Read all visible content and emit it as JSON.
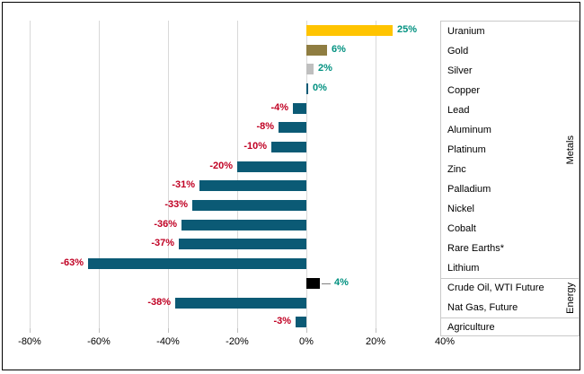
{
  "chart_data": {
    "type": "bar",
    "orientation": "horizontal",
    "title": "",
    "xlabel": "",
    "ylabel": "",
    "unit": "%",
    "xlim": [
      -80,
      45
    ],
    "grid": true,
    "legend_position": "right",
    "x_axis": {
      "ticks": [
        {
          "value": -80,
          "label": "-80%"
        },
        {
          "value": -60,
          "label": "-60%"
        },
        {
          "value": -40,
          "label": "-40%"
        },
        {
          "value": -20,
          "label": "-20%"
        },
        {
          "value": 0,
          "label": "0%"
        },
        {
          "value": 20,
          "label": "20%"
        },
        {
          "value": 40,
          "label": "40%"
        }
      ]
    },
    "categories": [
      "Uranium",
      "Gold",
      "Silver",
      "Copper",
      "Lead",
      "Aluminum",
      "Platinum",
      "Zinc",
      "Palladium",
      "Nickel",
      "Cobalt",
      "Rare Earths*",
      "Lithium",
      "Crude Oil, WTI Future",
      "Nat Gas, Future",
      "Agriculture"
    ],
    "values": [
      25,
      6,
      2,
      0,
      -4,
      -8,
      -10,
      -20,
      -31,
      -33,
      -36,
      -37,
      -63,
      4,
      -38,
      -3
    ],
    "rows": [
      {
        "category": "Uranium",
        "value": 25,
        "label": "25%",
        "color": "#FFC400"
      },
      {
        "category": "Gold",
        "value": 6,
        "label": "6%",
        "color": "#8F7D41"
      },
      {
        "category": "Silver",
        "value": 2,
        "label": "2%",
        "color": "#BFBFBF"
      },
      {
        "category": "Copper",
        "value": 0,
        "label": "0%",
        "color": "#0B5A75"
      },
      {
        "category": "Lead",
        "value": -4,
        "label": "-4%",
        "color": "#0B5A75"
      },
      {
        "category": "Aluminum",
        "value": -8,
        "label": "-8%",
        "color": "#0B5A75"
      },
      {
        "category": "Platinum",
        "value": -10,
        "label": "-10%",
        "color": "#0B5A75"
      },
      {
        "category": "Zinc",
        "value": -20,
        "label": "-20%",
        "color": "#0B5A75"
      },
      {
        "category": "Palladium",
        "value": -31,
        "label": "-31%",
        "color": "#0B5A75"
      },
      {
        "category": "Nickel",
        "value": -33,
        "label": "-33%",
        "color": "#0B5A75"
      },
      {
        "category": "Cobalt",
        "value": -36,
        "label": "-36%",
        "color": "#0B5A75"
      },
      {
        "category": "Rare Earths*",
        "value": -37,
        "label": "-37%",
        "color": "#0B5A75"
      },
      {
        "category": "Lithium",
        "value": -63,
        "label": "-63%",
        "color": "#0B5A75"
      },
      {
        "category": "Crude Oil, WTI Future",
        "value": 4,
        "label": "4%",
        "color": "#000000",
        "leader": true
      },
      {
        "category": "Nat Gas, Future",
        "value": -38,
        "label": "-38%",
        "color": "#0B5A75"
      },
      {
        "category": "Agriculture",
        "value": -3,
        "label": "-3%",
        "color": "#0B5A75"
      }
    ],
    "sections": [
      {
        "label": "Metals",
        "span": 13
      },
      {
        "label": "Energy",
        "span": 2
      },
      {
        "label": "",
        "span": 1
      }
    ],
    "colors": {
      "default_bar": "#0B5A75",
      "positive_label": "#019180",
      "negative_label": "#C00023",
      "gridline": "#D9D9D9",
      "tick": "#BFBFBF",
      "panel_border": "#C9C9C9",
      "leader_line": "#808080",
      "text": "#000000",
      "frame_border": "#000000"
    }
  }
}
